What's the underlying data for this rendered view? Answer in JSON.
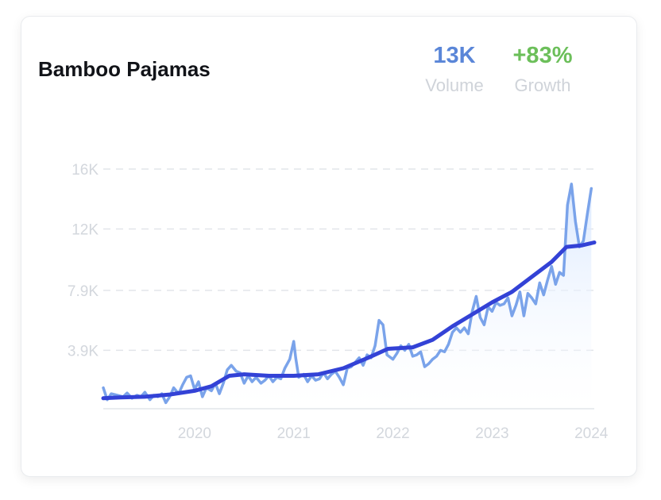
{
  "card": {
    "title": "Bamboo Pajamas",
    "metrics": [
      {
        "value": "13K",
        "label": "Volume",
        "color": "#5a86d8"
      },
      {
        "value": "+83%",
        "label": "Growth",
        "color": "#6cbf5a"
      }
    ]
  },
  "chart_data": {
    "type": "line",
    "title": "Bamboo Pajamas",
    "xlabel": "",
    "ylabel": "",
    "x_ticks": [
      "2020",
      "2021",
      "2022",
      "2023",
      "2024"
    ],
    "x_tick_positions": [
      2020,
      2021,
      2022,
      2023,
      2024
    ],
    "y_ticks": [
      "16K",
      "12K",
      "7.9K",
      "3.9K"
    ],
    "y_tick_values": [
      16000,
      12000,
      7900,
      3900
    ],
    "xlim": [
      2019.08,
      2024.03
    ],
    "ylim": [
      0,
      16000
    ],
    "grid": "horizontal-dashed",
    "colors": {
      "volume": "#7aa3ea",
      "trend": "#3342d6",
      "area": "#e4efff",
      "grid": "#e2e5ea"
    },
    "series": [
      {
        "role": "volume",
        "points": [
          [
            2019.08,
            1400
          ],
          [
            2019.12,
            600
          ],
          [
            2019.16,
            1000
          ],
          [
            2019.22,
            900
          ],
          [
            2019.28,
            800
          ],
          [
            2019.32,
            1050
          ],
          [
            2019.37,
            700
          ],
          [
            2019.42,
            900
          ],
          [
            2019.46,
            800
          ],
          [
            2019.5,
            1100
          ],
          [
            2019.55,
            600
          ],
          [
            2019.59,
            900
          ],
          [
            2019.63,
            800
          ],
          [
            2019.67,
            1000
          ],
          [
            2019.71,
            400
          ],
          [
            2019.75,
            800
          ],
          [
            2019.79,
            1400
          ],
          [
            2019.84,
            1000
          ],
          [
            2019.88,
            1600
          ],
          [
            2019.92,
            2100
          ],
          [
            2019.96,
            2200
          ],
          [
            2020.0,
            1300
          ],
          [
            2020.04,
            1800
          ],
          [
            2020.08,
            800
          ],
          [
            2020.12,
            1400
          ],
          [
            2020.17,
            1200
          ],
          [
            2020.21,
            1700
          ],
          [
            2020.25,
            1000
          ],
          [
            2020.29,
            1700
          ],
          [
            2020.33,
            2600
          ],
          [
            2020.37,
            2900
          ],
          [
            2020.42,
            2500
          ],
          [
            2020.46,
            2400
          ],
          [
            2020.5,
            1700
          ],
          [
            2020.54,
            2200
          ],
          [
            2020.58,
            1800
          ],
          [
            2020.62,
            2100
          ],
          [
            2020.67,
            1700
          ],
          [
            2020.71,
            1900
          ],
          [
            2020.75,
            2200
          ],
          [
            2020.79,
            1800
          ],
          [
            2020.83,
            2100
          ],
          [
            2020.87,
            2000
          ],
          [
            2020.91,
            2700
          ],
          [
            2020.96,
            3300
          ],
          [
            2021.0,
            4500
          ],
          [
            2021.02,
            3400
          ],
          [
            2021.05,
            2100
          ],
          [
            2021.1,
            2300
          ],
          [
            2021.14,
            1800
          ],
          [
            2021.18,
            2200
          ],
          [
            2021.22,
            1900
          ],
          [
            2021.26,
            2000
          ],
          [
            2021.3,
            2400
          ],
          [
            2021.34,
            2000
          ],
          [
            2021.38,
            2300
          ],
          [
            2021.42,
            2500
          ],
          [
            2021.46,
            2100
          ],
          [
            2021.5,
            1600
          ],
          [
            2021.54,
            2700
          ],
          [
            2021.58,
            2800
          ],
          [
            2021.62,
            3100
          ],
          [
            2021.66,
            3400
          ],
          [
            2021.7,
            2900
          ],
          [
            2021.74,
            3600
          ],
          [
            2021.78,
            3400
          ],
          [
            2021.82,
            4200
          ],
          [
            2021.86,
            5900
          ],
          [
            2021.9,
            5600
          ],
          [
            2021.94,
            3600
          ],
          [
            2022.0,
            3300
          ],
          [
            2022.04,
            3700
          ],
          [
            2022.08,
            4200
          ],
          [
            2022.12,
            3900
          ],
          [
            2022.16,
            4300
          ],
          [
            2022.2,
            3500
          ],
          [
            2022.24,
            3600
          ],
          [
            2022.28,
            3800
          ],
          [
            2022.32,
            2800
          ],
          [
            2022.36,
            3000
          ],
          [
            2022.4,
            3300
          ],
          [
            2022.44,
            3500
          ],
          [
            2022.48,
            3900
          ],
          [
            2022.52,
            3800
          ],
          [
            2022.56,
            4300
          ],
          [
            2022.6,
            5100
          ],
          [
            2022.64,
            5400
          ],
          [
            2022.68,
            5100
          ],
          [
            2022.72,
            5400
          ],
          [
            2022.76,
            5000
          ],
          [
            2022.8,
            6500
          ],
          [
            2022.84,
            7500
          ],
          [
            2022.88,
            6100
          ],
          [
            2022.92,
            5600
          ],
          [
            2022.96,
            6800
          ],
          [
            2023.0,
            6500
          ],
          [
            2023.04,
            7100
          ],
          [
            2023.08,
            6900
          ],
          [
            2023.12,
            7000
          ],
          [
            2023.16,
            7400
          ],
          [
            2023.2,
            6200
          ],
          [
            2023.24,
            6900
          ],
          [
            2023.28,
            7800
          ],
          [
            2023.32,
            6200
          ],
          [
            2023.36,
            7700
          ],
          [
            2023.4,
            7400
          ],
          [
            2023.44,
            7000
          ],
          [
            2023.48,
            8400
          ],
          [
            2023.52,
            7600
          ],
          [
            2023.56,
            8600
          ],
          [
            2023.6,
            9500
          ],
          [
            2023.64,
            8300
          ],
          [
            2023.68,
            9100
          ],
          [
            2023.72,
            8900
          ],
          [
            2023.76,
            13600
          ],
          [
            2023.8,
            15000
          ],
          [
            2023.84,
            12500
          ],
          [
            2023.88,
            10800
          ],
          [
            2023.92,
            11200
          ],
          [
            2023.96,
            13000
          ],
          [
            2024.0,
            14700
          ]
        ]
      },
      {
        "role": "trend",
        "points": [
          [
            2019.08,
            700
          ],
          [
            2019.25,
            750
          ],
          [
            2019.5,
            800
          ],
          [
            2019.75,
            950
          ],
          [
            2020.0,
            1200
          ],
          [
            2020.17,
            1500
          ],
          [
            2020.35,
            2200
          ],
          [
            2020.5,
            2300
          ],
          [
            2020.75,
            2200
          ],
          [
            2021.0,
            2200
          ],
          [
            2021.25,
            2300
          ],
          [
            2021.5,
            2700
          ],
          [
            2021.75,
            3400
          ],
          [
            2021.95,
            4000
          ],
          [
            2022.2,
            4100
          ],
          [
            2022.4,
            4600
          ],
          [
            2022.6,
            5500
          ],
          [
            2022.8,
            6300
          ],
          [
            2023.0,
            7100
          ],
          [
            2023.2,
            7800
          ],
          [
            2023.4,
            8800
          ],
          [
            2023.6,
            9800
          ],
          [
            2023.75,
            10800
          ],
          [
            2023.9,
            10900
          ],
          [
            2024.03,
            11100
          ]
        ]
      }
    ]
  }
}
